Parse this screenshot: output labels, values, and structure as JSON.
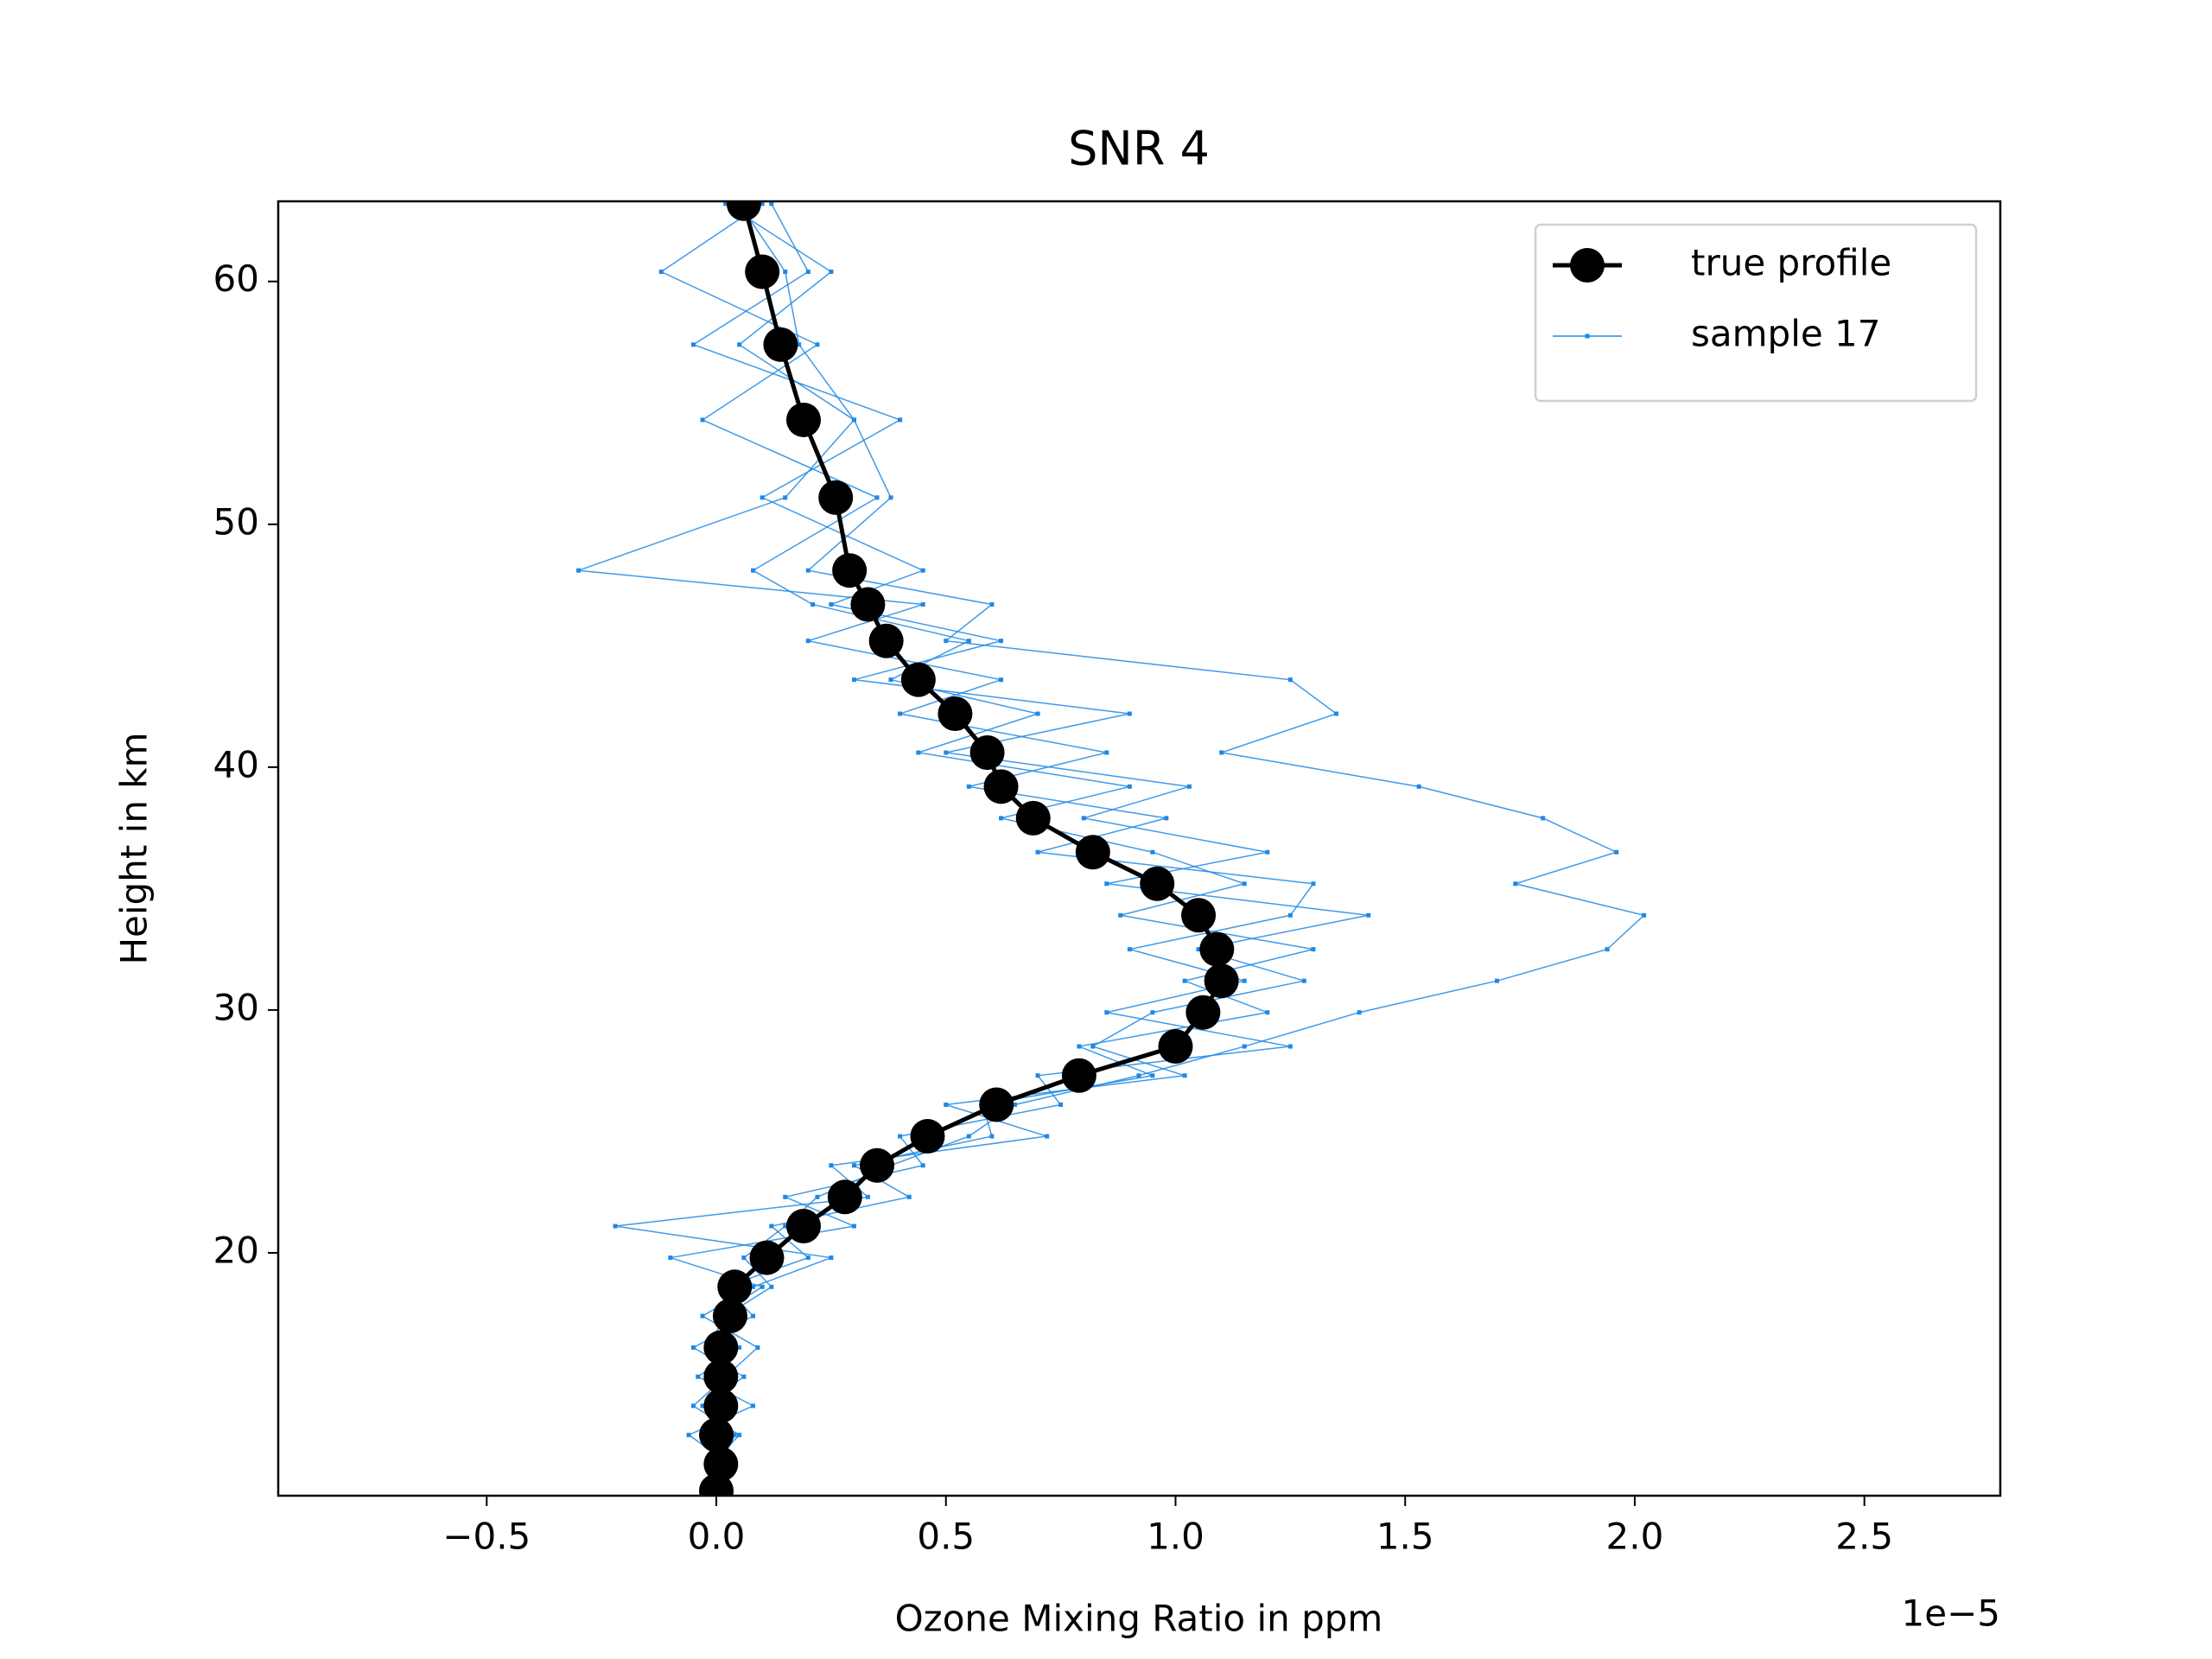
{
  "chart_data": {
    "type": "line",
    "title": "SNR 4",
    "xlabel": "Ozone Mixing Ratio in ppm",
    "ylabel": "Height in km",
    "x_offset_label": "1e−5",
    "y": [
      63.2,
      60.4,
      57.4,
      54.3,
      51.1,
      48.1,
      46.7,
      45.2,
      43.6,
      42.2,
      40.6,
      39.2,
      37.9,
      36.5,
      35.2,
      33.9,
      32.5,
      31.2,
      29.9,
      28.5,
      27.3,
      26.1,
      24.8,
      23.6,
      22.3,
      21.1,
      19.8,
      18.6,
      17.4,
      16.1,
      14.9,
      13.7,
      12.5,
      11.3,
      10.2
    ],
    "series": [
      {
        "color": "#1e88e5",
        "values": [
          0.1,
          -0.12,
          0.22,
          -0.03,
          0.35,
          0.08,
          0.21,
          0.55,
          0.38,
          0.7,
          0.44,
          0.9,
          0.62,
          0.95,
          1.15,
          0.88,
          1.3,
          1.02,
          1.2,
          0.79,
          0.95,
          0.58,
          0.6,
          0.3,
          0.42,
          0.12,
          0.2,
          0.02,
          0.08,
          -0.05,
          0.06,
          -0.03,
          0.04,
          0.01,
          -0.02
        ]
      },
      {
        "color": "#1e88e5",
        "values": [
          0.02,
          0.25,
          0.05,
          0.3,
          0.15,
          -0.3,
          0.45,
          0.2,
          0.62,
          0.4,
          0.85,
          0.55,
          0.98,
          0.7,
          1.3,
          1.25,
          0.9,
          1.15,
          0.85,
          1.25,
          0.7,
          0.75,
          0.4,
          0.45,
          0.15,
          0.3,
          -0.1,
          0.1,
          0.0,
          0.05,
          -0.04,
          0.08,
          -0.06,
          0.03,
          0.02
        ]
      },
      {
        "color": "#1e88e5",
        "values": [
          0.12,
          0.2,
          -0.05,
          0.4,
          0.1,
          0.45,
          0.25,
          0.62,
          0.3,
          0.9,
          0.5,
          1.03,
          0.8,
          1.2,
          0.85,
          1.42,
          1.05,
          1.28,
          0.95,
          0.82,
          1.02,
          0.5,
          0.72,
          0.25,
          0.33,
          -0.22,
          0.25,
          0.08,
          -0.03,
          0.09,
          0.02,
          -0.05,
          0.05,
          -0.01,
          0.03
        ]
      },
      {
        "name": "sample 17",
        "color": "#1e88e5",
        "values": [
          0.05,
          0.15,
          0.18,
          0.3,
          0.38,
          0.2,
          0.6,
          0.5,
          1.25,
          1.35,
          1.1,
          1.53,
          1.8,
          1.96,
          1.74,
          2.02,
          1.94,
          1.7,
          1.4,
          1.15,
          0.92,
          0.65,
          0.55,
          0.38,
          0.22,
          0.15,
          0.06,
          0.12,
          0.02,
          -0.02,
          0.04,
          0.0,
          -0.03,
          0.02,
          0.01
        ]
      },
      {
        "name": "true profile",
        "color": "#000000",
        "values": [
          0.06,
          0.1,
          0.14,
          0.19,
          0.26,
          0.29,
          0.33,
          0.37,
          0.44,
          0.52,
          0.59,
          0.62,
          0.69,
          0.82,
          0.96,
          1.05,
          1.09,
          1.1,
          1.06,
          1.0,
          0.79,
          0.61,
          0.46,
          0.35,
          0.28,
          0.19,
          0.11,
          0.04,
          0.03,
          0.01,
          0.01,
          0.01,
          0.0,
          0.01,
          0.0
        ]
      }
    ],
    "xlim": [
      -0.954,
      2.796
    ],
    "ylim": [
      10,
      63.3
    ],
    "xticks": [
      {
        "value": -0.5,
        "label": "−0.5"
      },
      {
        "value": 0,
        "label": "0.0"
      },
      {
        "value": 0.5,
        "label": "0.5"
      },
      {
        "value": 1,
        "label": "1.0"
      },
      {
        "value": 1.5,
        "label": "1.5"
      },
      {
        "value": 2,
        "label": "2.0"
      },
      {
        "value": 2.5,
        "label": "2.5"
      }
    ],
    "yticks": [
      20,
      30,
      40,
      50,
      60
    ],
    "legend": "upper right"
  }
}
